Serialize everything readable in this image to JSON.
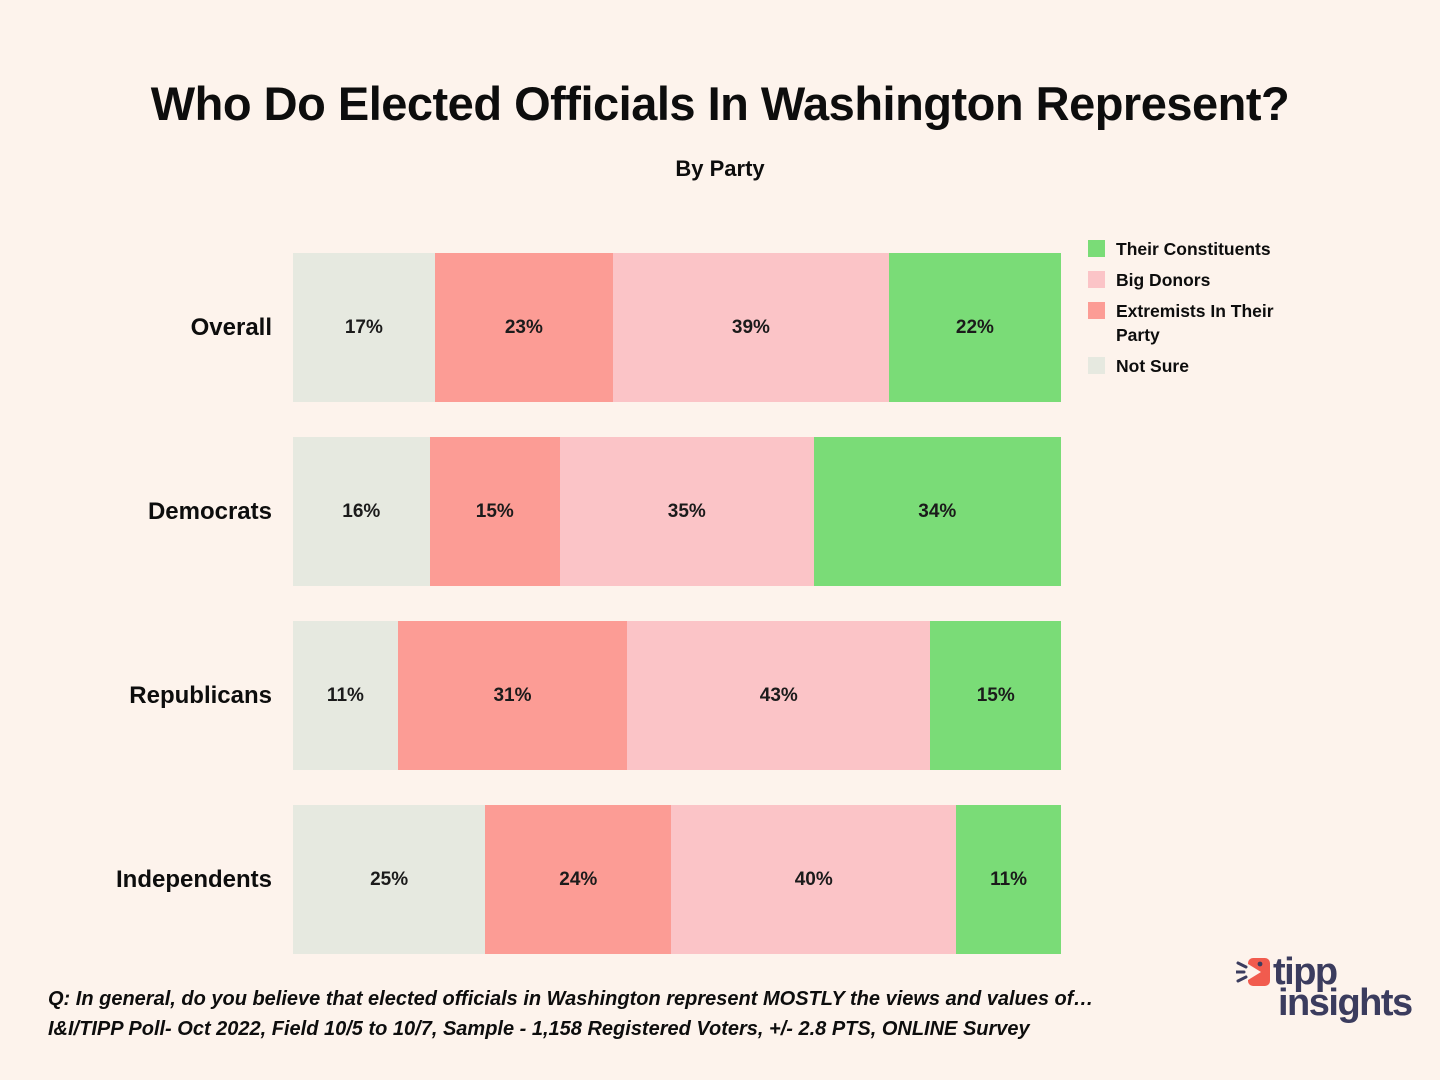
{
  "title": "Who Do Elected Officials In Washington Represent?",
  "subtitle": "By Party",
  "chart_data": {
    "type": "bar",
    "orientation": "horizontal-stacked",
    "categories": [
      "Overall",
      "Democrats",
      "Republicans",
      "Independents"
    ],
    "series": [
      {
        "name": "Not Sure",
        "color": "#E6E9E0",
        "values": [
          17,
          16,
          11,
          25
        ]
      },
      {
        "name": "Extremists In Their Party",
        "color": "#FC9C95",
        "values": [
          23,
          15,
          31,
          24
        ]
      },
      {
        "name": "Big Donors",
        "color": "#FBC4C7",
        "values": [
          39,
          35,
          43,
          40
        ]
      },
      {
        "name": "Their Constituents",
        "color": "#7ADC77",
        "values": [
          22,
          34,
          15,
          11
        ]
      }
    ],
    "value_suffix": "%",
    "legend_position": "top-right",
    "grid": false,
    "xlim": [
      0,
      100
    ]
  },
  "legend": {
    "items": [
      {
        "label": "Their Constituents",
        "color": "#7ADC77"
      },
      {
        "label": "Big Donors",
        "color": "#FBC4C7"
      },
      {
        "label": "Extremists In Their Party",
        "color": "#FC9C95"
      },
      {
        "label": "Not Sure",
        "color": "#E6E9E0"
      }
    ]
  },
  "footer": {
    "question": "Q: In general, do you believe that elected officials in Washington represent MOSTLY the views and values of…",
    "source": "I&I/TIPP Poll- Oct 2022, Field 10/5 to 10/7, Sample - 1,158 Registered Voters, +/- 2.8 PTS, ONLINE Survey"
  },
  "logo": {
    "word1": "tipp",
    "word2": "insights",
    "navy": "#3B3C5E",
    "red": "#F15B4E"
  },
  "colors": {
    "background": "#FDF3EC",
    "text": "#111111"
  }
}
